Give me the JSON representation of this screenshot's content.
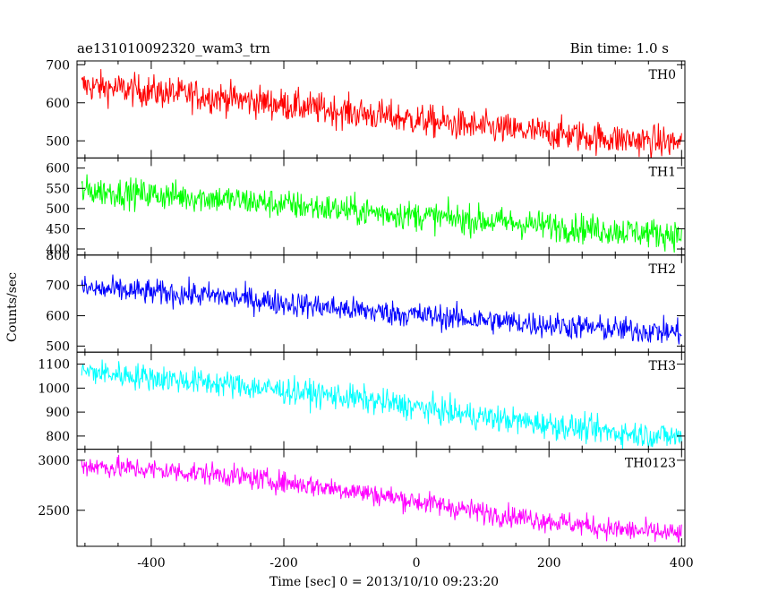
{
  "header": {
    "title": "ae131010092320_wam3_trn",
    "bin_time": "Bin time: 1.0 s"
  },
  "chart_data": {
    "type": "line",
    "title": "ae131010092320_wam3_trn",
    "xlabel": "Time [sec] 0 = 2013/10/10 09:23:20",
    "ylabel": "Counts/sec",
    "xlim": [
      -512,
      405
    ],
    "x_ticks": [
      -400,
      -200,
      0,
      200,
      400
    ],
    "bin_time_s": 1.0,
    "panels": [
      {
        "name": "TH0",
        "color": "#ff0000",
        "ylim": [
          455,
          710
        ],
        "y_ticks": [
          500,
          600,
          700
        ],
        "trend": [
          [
            -505,
            645
          ],
          [
            -300,
            615
          ],
          [
            -100,
            575
          ],
          [
            100,
            535
          ],
          [
            300,
            505
          ],
          [
            400,
            495
          ]
        ],
        "noise": 38
      },
      {
        "name": "TH1",
        "color": "#00ff00",
        "ylim": [
          385,
          625
        ],
        "y_ticks": [
          400,
          450,
          500,
          550,
          600
        ],
        "trend": [
          [
            -505,
            545
          ],
          [
            -300,
            525
          ],
          [
            -100,
            495
          ],
          [
            100,
            470
          ],
          [
            300,
            445
          ],
          [
            400,
            435
          ]
        ],
        "noise": 33
      },
      {
        "name": "TH2",
        "color": "#0000ff",
        "ylim": [
          480,
          800
        ],
        "y_ticks": [
          500,
          600,
          700,
          800
        ],
        "trend": [
          [
            -505,
            690
          ],
          [
            -300,
            665
          ],
          [
            -100,
            620
          ],
          [
            100,
            585
          ],
          [
            300,
            555
          ],
          [
            400,
            545
          ]
        ],
        "noise": 38
      },
      {
        "name": "TH3",
        "color": "#00ffff",
        "ylim": [
          745,
          1150
        ],
        "y_ticks": [
          800,
          900,
          1000,
          1100
        ],
        "trend": [
          [
            -505,
            1070
          ],
          [
            -300,
            1020
          ],
          [
            -100,
            960
          ],
          [
            100,
            880
          ],
          [
            300,
            815
          ],
          [
            400,
            795
          ]
        ],
        "noise": 50
      },
      {
        "name": "TH0123",
        "color": "#ff00ff",
        "ylim": [
          2140,
          3110
        ],
        "y_ticks": [
          2500,
          3000
        ],
        "trend": [
          [
            -505,
            2950
          ],
          [
            -300,
            2860
          ],
          [
            -100,
            2700
          ],
          [
            100,
            2480
          ],
          [
            300,
            2310
          ],
          [
            400,
            2260
          ]
        ],
        "noise": 100
      }
    ]
  }
}
